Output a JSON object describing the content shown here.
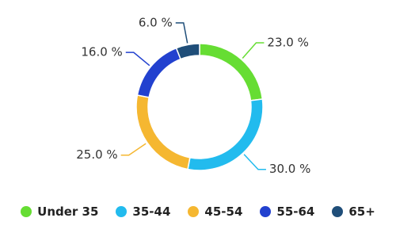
{
  "chart_data": {
    "type": "donut",
    "categories": [
      "Under 35",
      "35-44",
      "45-54",
      "55-64",
      "65+"
    ],
    "values": [
      23,
      30,
      25,
      16,
      6
    ],
    "value_labels": [
      "23.0 %",
      "30.0 %",
      "25.0 %",
      "16.0 %",
      "6.0 %"
    ],
    "colors": [
      "#66dd33",
      "#22bbee",
      "#f5b731",
      "#2241cf",
      "#1f4e79"
    ]
  }
}
